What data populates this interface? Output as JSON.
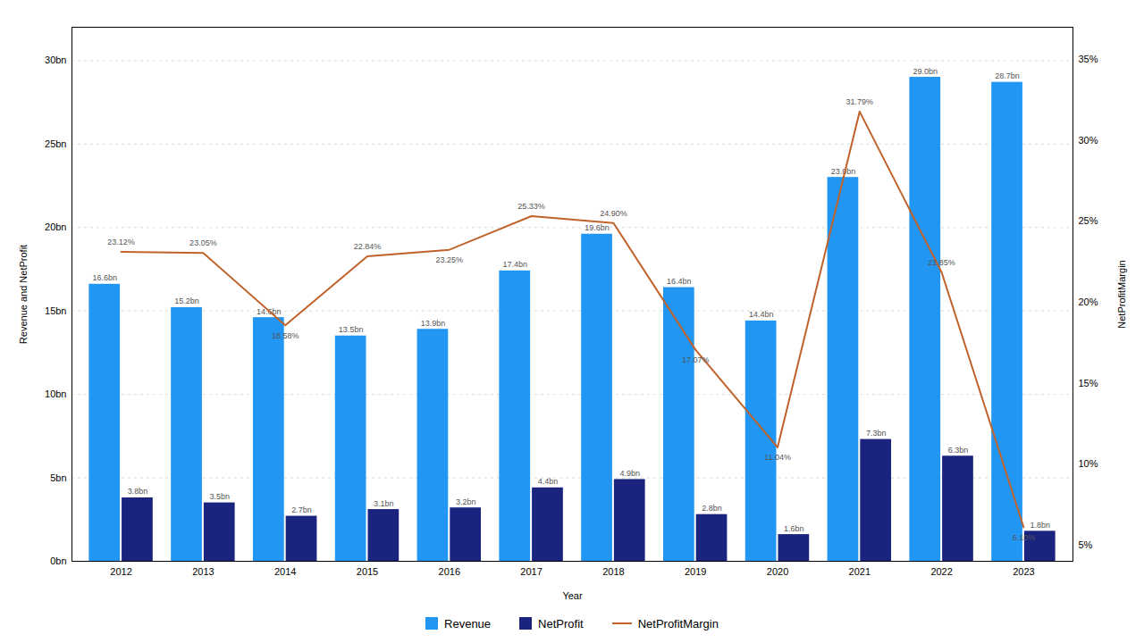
{
  "chart_data": {
    "type": "bar",
    "xlabel": "Year",
    "ylabel": "Revenue and NetProfit",
    "y2label": "NetProfitMargin",
    "categories": [
      "2012",
      "2013",
      "2014",
      "2015",
      "2016",
      "2017",
      "2018",
      "2019",
      "2020",
      "2021",
      "2022",
      "2023"
    ],
    "series": [
      {
        "name": "Revenue",
        "type": "bar",
        "color": "#2196F3",
        "values": [
          16.6,
          15.2,
          14.6,
          13.5,
          13.9,
          17.4,
          19.6,
          16.4,
          14.4,
          23.0,
          29.0,
          28.7
        ],
        "value_labels": [
          "16.6bn",
          "15.2bn",
          "14.6bn",
          "13.5bn",
          "13.9bn",
          "17.4bn",
          "19.6bn",
          "16.4bn",
          "14.4bn",
          "23.0bn",
          "29.0bn",
          "28.7bn"
        ]
      },
      {
        "name": "NetProfit",
        "type": "bar",
        "color": "#1a237e",
        "values": [
          3.8,
          3.5,
          2.7,
          3.1,
          3.2,
          4.4,
          4.9,
          2.8,
          1.6,
          7.3,
          6.3,
          1.8
        ],
        "value_labels": [
          "3.8bn",
          "3.5bn",
          "2.7bn",
          "3.1bn",
          "3.2bn",
          "4.4bn",
          "4.9bn",
          "2.8bn",
          "1.6bn",
          "7.3bn",
          "6.3bn",
          "1.8bn"
        ]
      },
      {
        "name": "NetProfitMargin",
        "type": "line",
        "axis": "y2",
        "color": "#c0622a",
        "values": [
          23.12,
          23.05,
          18.58,
          22.84,
          23.25,
          25.33,
          24.9,
          17.07,
          11.04,
          31.79,
          21.85,
          6.1
        ],
        "value_labels": [
          "23.12%",
          "23.05%",
          "18.58%",
          "22.84%",
          "23.25%",
          "25.33%",
          "24.90%",
          "17.07%",
          "11.04%",
          "31.79%",
          "21.85%",
          "6.10%"
        ]
      }
    ],
    "ylim": [
      0,
      32
    ],
    "yticks": [
      {
        "value": 0,
        "label": "0bn"
      },
      {
        "value": 5,
        "label": "5bn"
      },
      {
        "value": 10,
        "label": "10bn"
      },
      {
        "value": 15,
        "label": "15bn"
      },
      {
        "value": 20,
        "label": "20bn"
      },
      {
        "value": 25,
        "label": "25bn"
      },
      {
        "value": 30,
        "label": "30bn"
      }
    ],
    "y2lim": [
      4,
      37
    ],
    "y2ticks": [
      {
        "value": 5,
        "label": "5%"
      },
      {
        "value": 10,
        "label": "10%"
      },
      {
        "value": 15,
        "label": "15%"
      },
      {
        "value": 20,
        "label": "20%"
      },
      {
        "value": 25,
        "label": "25%"
      },
      {
        "value": 30,
        "label": "30%"
      },
      {
        "value": 35,
        "label": "35%"
      }
    ],
    "grid": true,
    "data_labels": true,
    "legend": "bottom"
  }
}
